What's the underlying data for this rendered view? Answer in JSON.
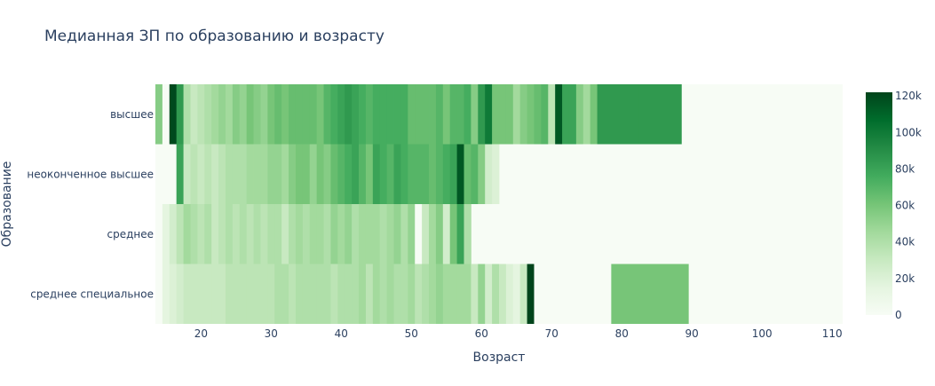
{
  "chart_data": {
    "type": "heatmap",
    "title": "Медианная ЗП по образованию и возрасту",
    "xlabel": "Возраст",
    "ylabel": "Образование",
    "x_tick_labels": [
      "20",
      "30",
      "40",
      "50",
      "60",
      "70",
      "80",
      "90",
      "100",
      "110"
    ],
    "x_ticks": [
      20,
      30,
      40,
      50,
      60,
      70,
      80,
      90,
      100,
      110
    ],
    "x_range": [
      13.5,
      111.5
    ],
    "categories": [
      "высшее",
      "неоконченное высшее",
      "среднее",
      "среднее специальное"
    ],
    "colorscale": [
      "#f7fcf5",
      "#e5f5e0",
      "#c7e9c0",
      "#a1d99b",
      "#74c476",
      "#41ab5d",
      "#238b45",
      "#006d2c",
      "#00441b"
    ],
    "zmin": 0,
    "zmax": 122000,
    "colorbar_ticks": [
      0,
      20000,
      40000,
      60000,
      80000,
      100000,
      120000
    ],
    "colorbar_tick_labels": [
      "0",
      "20k",
      "40k",
      "60k",
      "80k",
      "100k",
      "120k"
    ],
    "rows": [
      {
        "name": "высшее",
        "x": [
          14,
          15,
          16,
          17,
          18,
          19,
          20,
          21,
          22,
          23,
          24,
          25,
          26,
          27,
          28,
          29,
          30,
          31,
          32,
          33,
          34,
          35,
          36,
          37,
          38,
          39,
          40,
          41,
          42,
          43,
          44,
          45,
          46,
          47,
          48,
          49,
          50,
          51,
          52,
          53,
          54,
          55,
          56,
          57,
          58,
          59,
          60,
          61,
          62,
          63,
          64,
          65,
          66,
          67,
          68,
          69,
          70,
          71,
          72,
          73,
          74,
          75,
          76,
          77,
          88
        ],
        "z": [
          55000,
          0,
          120000,
          85000,
          40000,
          30000,
          35000,
          40000,
          45000,
          50000,
          45000,
          55000,
          50000,
          60000,
          55000,
          50000,
          60000,
          65000,
          60000,
          65000,
          65000,
          65000,
          65000,
          60000,
          70000,
          75000,
          80000,
          85000,
          80000,
          75000,
          70000,
          75000,
          75000,
          75000,
          75000,
          75000,
          65000,
          65000,
          65000,
          65000,
          70000,
          60000,
          70000,
          70000,
          75000,
          55000,
          85000,
          100000,
          60000,
          60000,
          60000,
          45000,
          55000,
          60000,
          65000,
          70000,
          35000,
          115000,
          80000,
          80000,
          55000,
          45000,
          60000,
          85000,
          85000
        ]
      },
      {
        "name": "неоконченное высшее",
        "x": [
          17,
          18,
          19,
          20,
          21,
          22,
          23,
          24,
          25,
          26,
          27,
          28,
          29,
          30,
          31,
          32,
          33,
          34,
          35,
          36,
          37,
          38,
          39,
          40,
          41,
          42,
          43,
          44,
          45,
          46,
          47,
          48,
          49,
          50,
          51,
          52,
          53,
          54,
          55,
          56,
          57,
          58,
          59,
          60,
          61,
          62
        ],
        "z": [
          80000,
          30000,
          35000,
          30000,
          35000,
          30000,
          35000,
          40000,
          40000,
          40000,
          45000,
          45000,
          45000,
          50000,
          50000,
          45000,
          55000,
          60000,
          60000,
          50000,
          60000,
          55000,
          65000,
          70000,
          75000,
          80000,
          70000,
          60000,
          80000,
          75000,
          70000,
          80000,
          75000,
          70000,
          70000,
          70000,
          65000,
          70000,
          75000,
          80000,
          115000,
          65000,
          70000,
          55000,
          25000,
          20000
        ]
      },
      {
        "name": "среднее",
        "x": [
          15,
          16,
          17,
          18,
          19,
          20,
          21,
          22,
          23,
          24,
          25,
          26,
          27,
          28,
          29,
          30,
          31,
          32,
          33,
          34,
          35,
          36,
          37,
          38,
          39,
          40,
          41,
          42,
          43,
          44,
          45,
          46,
          47,
          48,
          49,
          50,
          51,
          52,
          53,
          54,
          55,
          56,
          57,
          58
        ],
        "z": [
          15000,
          25000,
          35000,
          45000,
          40000,
          35000,
          40000,
          30000,
          35000,
          40000,
          35000,
          40000,
          35000,
          40000,
          35000,
          40000,
          40000,
          30000,
          40000,
          45000,
          40000,
          45000,
          45000,
          40000,
          50000,
          45000,
          50000,
          40000,
          45000,
          45000,
          45000,
          40000,
          45000,
          50000,
          40000,
          50000,
          0,
          30000,
          45000,
          55000,
          25000,
          60000,
          80000,
          40000
        ]
      },
      {
        "name": "среднее специальное",
        "x": [
          15,
          16,
          17,
          18,
          19,
          20,
          21,
          22,
          23,
          24,
          25,
          26,
          27,
          28,
          29,
          30,
          31,
          32,
          33,
          34,
          35,
          36,
          37,
          38,
          39,
          40,
          41,
          42,
          43,
          44,
          45,
          46,
          47,
          48,
          49,
          50,
          51,
          52,
          53,
          54,
          55,
          56,
          57,
          58,
          59,
          60,
          61,
          62,
          63,
          64,
          65,
          66,
          67,
          68,
          89
        ],
        "z": [
          15000,
          20000,
          25000,
          30000,
          30000,
          30000,
          30000,
          30000,
          30000,
          35000,
          35000,
          35000,
          35000,
          35000,
          35000,
          35000,
          40000,
          40000,
          35000,
          40000,
          40000,
          40000,
          40000,
          40000,
          35000,
          40000,
          40000,
          40000,
          45000,
          35000,
          45000,
          40000,
          45000,
          40000,
          40000,
          45000,
          35000,
          40000,
          45000,
          50000,
          45000,
          45000,
          45000,
          45000,
          30000,
          50000,
          25000,
          40000,
          30000,
          20000,
          15000,
          30000,
          122000,
          0,
          60000
        ]
      }
    ]
  }
}
